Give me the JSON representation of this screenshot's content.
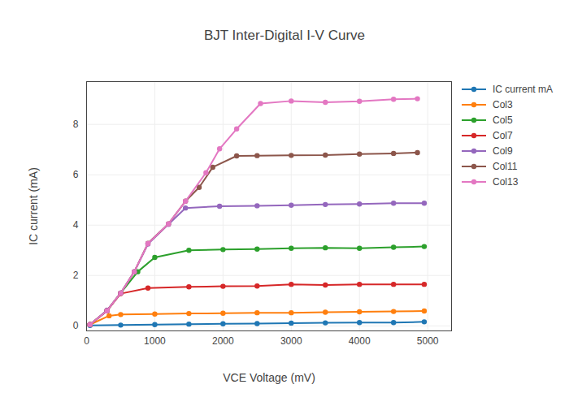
{
  "chart_data": {
    "type": "line",
    "title": "BJT Inter-Digital I-V Curve",
    "x_label": "VCE Voltage (mV)",
    "y_label": "IC current (mA)",
    "xlim": [
      0,
      5350
    ],
    "ylim": [
      -0.2,
      9.7
    ],
    "xticks": [
      0,
      1000,
      2000,
      3000,
      4000,
      5000
    ],
    "yticks": [
      0,
      2,
      4,
      6,
      8
    ],
    "grid": true,
    "legend": "right",
    "marker": "circle",
    "series": [
      {
        "name": "IC current mA",
        "color": "#1f77b4",
        "x": [
          50,
          500,
          1000,
          1500,
          2000,
          2500,
          3000,
          3500,
          4000,
          4500,
          4950
        ],
        "values": [
          0.02,
          0.03,
          0.05,
          0.07,
          0.08,
          0.09,
          0.11,
          0.12,
          0.13,
          0.13,
          0.16
        ]
      },
      {
        "name": "Col3",
        "color": "#ff7f0e",
        "x": [
          50,
          330,
          500,
          1000,
          1500,
          2000,
          2500,
          3000,
          3500,
          4000,
          4500,
          4950
        ],
        "values": [
          0.05,
          0.4,
          0.45,
          0.47,
          0.49,
          0.5,
          0.52,
          0.52,
          0.54,
          0.56,
          0.57,
          0.59
        ]
      },
      {
        "name": "Col5",
        "color": "#2ca02c",
        "x": [
          50,
          300,
          500,
          750,
          1000,
          1500,
          2000,
          2500,
          3000,
          3500,
          4000,
          4500,
          4950
        ],
        "values": [
          0.05,
          0.6,
          1.3,
          2.15,
          2.72,
          3.0,
          3.03,
          3.05,
          3.08,
          3.1,
          3.08,
          3.12,
          3.15
        ]
      },
      {
        "name": "Col7",
        "color": "#d62728",
        "x": [
          50,
          300,
          500,
          900,
          1500,
          2000,
          2500,
          3000,
          3500,
          4000,
          4500,
          4950
        ],
        "values": [
          0.05,
          0.6,
          1.28,
          1.5,
          1.55,
          1.57,
          1.58,
          1.65,
          1.62,
          1.65,
          1.65,
          1.65
        ]
      },
      {
        "name": "Col9",
        "color": "#9467bd",
        "x": [
          50,
          300,
          500,
          700,
          900,
          1200,
          1450,
          1950,
          2500,
          3000,
          3500,
          4000,
          4500,
          4950
        ],
        "values": [
          0.05,
          0.62,
          1.3,
          2.15,
          3.25,
          4.03,
          4.68,
          4.75,
          4.77,
          4.79,
          4.82,
          4.84,
          4.87,
          4.87
        ]
      },
      {
        "name": "Col11",
        "color": "#8c564b",
        "x": [
          50,
          300,
          500,
          700,
          900,
          1200,
          1450,
          1650,
          1850,
          2200,
          2500,
          3000,
          3500,
          4000,
          4500,
          4850
        ],
        "values": [
          0.05,
          0.6,
          1.3,
          2.15,
          3.28,
          4.05,
          4.95,
          5.5,
          6.3,
          6.75,
          6.76,
          6.77,
          6.78,
          6.82,
          6.85,
          6.88
        ]
      },
      {
        "name": "Col13",
        "color": "#e377c2",
        "x": [
          50,
          300,
          500,
          700,
          900,
          1200,
          1450,
          1750,
          1950,
          2200,
          2550,
          3000,
          3500,
          4000,
          4500,
          4850
        ],
        "values": [
          0.05,
          0.6,
          1.3,
          2.15,
          3.27,
          4.05,
          4.95,
          6.08,
          7.03,
          7.82,
          8.83,
          8.93,
          8.88,
          8.92,
          9.0,
          9.02
        ]
      }
    ]
  }
}
